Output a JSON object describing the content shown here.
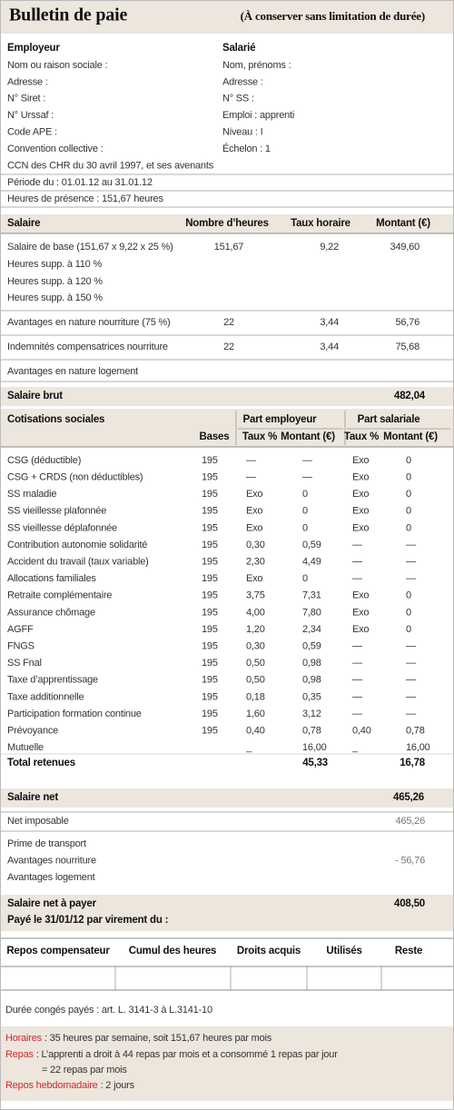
{
  "header": {
    "title": "Bulletin de paie",
    "note": "(À conserver sans limitation de durée)"
  },
  "employeur": {
    "heading": "Employeur",
    "lines": [
      "Nom ou raison sociale :",
      "Adresse :",
      "N° Siret :",
      "N° Urssaf :",
      "Code APE :",
      "Convention collective :",
      "CCN des CHR du 30 avril 1997, et ses avenants"
    ]
  },
  "salarie": {
    "heading": "Salarié",
    "lines": [
      "Nom, prénoms :",
      "Adresse :",
      "N° SS :",
      "Emploi : apprenti",
      "Niveau : I",
      "Échelon : 1"
    ]
  },
  "periode": "Période du : 01.01.12 au 31.01.12",
  "presence": "Heures de présence : 151,67 heures",
  "salaire": {
    "headers": [
      "Salaire",
      "Nombre d’heures",
      "Taux horaire",
      "Montant (€)"
    ],
    "rows": [
      [
        "Salaire de base (151,67 x 9,22 x 25 %)",
        "151,67",
        "9,22",
        "349,60"
      ],
      [
        "Heures supp. à 110 %"
      ],
      [
        "Heures supp. à 120 %"
      ],
      [
        "Heures supp. à 150 %"
      ],
      [
        "Avantages en nature nourriture (75 %)",
        "22",
        "3,44",
        "56,76"
      ],
      [
        "Indemnités compensatrices nourriture",
        "22",
        "3,44",
        "75,68"
      ],
      [
        "Avantages en nature logement"
      ]
    ]
  },
  "brut": {
    "label": "Salaire brut",
    "value": "482,04"
  },
  "cotisations": {
    "title": "Cotisations sociales",
    "groups": [
      "Part employeur",
      "Part salariale"
    ],
    "columns": [
      "Bases",
      "Taux %",
      "Montant (€)",
      "Taux %",
      "Montant (€)"
    ],
    "rows": [
      [
        "CSG (déductible)",
        "195",
        "—",
        "—",
        "Exo",
        "0"
      ],
      [
        "CSG + CRDS (non déductibles)",
        "195",
        "—",
        "—",
        "Exo",
        "0"
      ],
      [
        "SS maladie",
        "195",
        "Exo",
        "0",
        "Exo",
        "0"
      ],
      [
        "SS vieillesse plafonnée",
        "195",
        "Exo",
        "0",
        "Exo",
        "0"
      ],
      [
        "SS vieillesse déplafonnée",
        "195",
        "Exo",
        "0",
        "Exo",
        "0"
      ],
      [
        "Contribution autonomie solidarité",
        "195",
        "0,30",
        "0,59",
        "—",
        "—"
      ],
      [
        "Accident du travail (taux variable)",
        "195",
        "2,30",
        "4,49",
        "—",
        "—"
      ],
      [
        "Allocations familiales",
        "195",
        "Exo",
        "0",
        "—",
        "—"
      ],
      [
        "Retraite complémentaire",
        "195",
        "3,75",
        "7,31",
        "Exo",
        "0"
      ],
      [
        "Assurance chômage",
        "195",
        "4,00",
        "7,80",
        "Exo",
        "0"
      ],
      [
        "AGFF",
        "195",
        "1,20",
        "2,34",
        "Exo",
        "0"
      ],
      [
        "FNGS",
        "195",
        "0,30",
        "0,59",
        "—",
        "—"
      ],
      [
        "SS Fnal",
        "195",
        "0,50",
        "0,98",
        "—",
        "—"
      ],
      [
        "Taxe d’apprentissage",
        "195",
        "0,50",
        "0,98",
        "—",
        "—"
      ],
      [
        "Taxe additionnelle",
        "195",
        "0,18",
        "0,35",
        "—",
        "—"
      ],
      [
        "Participation formation continue",
        "195",
        "1,60",
        "3,12",
        "—",
        "—"
      ],
      [
        "Prévoyance",
        "195",
        "0,40",
        "0,78",
        "0,40",
        "0,78"
      ],
      [
        "Mutuelle",
        null,
        "_",
        "16,00",
        "_",
        "16,00"
      ]
    ],
    "total": {
      "label": "Total retenues",
      "employer": "45,33",
      "employee": "16,78"
    }
  },
  "net": {
    "label": "Salaire net",
    "value": "465,26"
  },
  "net_imposable": {
    "label": "Net imposable",
    "value": "465,26"
  },
  "ajustements": [
    [
      "Prime de transport"
    ],
    [
      "Avantages nourriture",
      "- 56,76"
    ],
    [
      "Avantages logement"
    ]
  ],
  "net_a_payer": {
    "label": "Salaire net à payer",
    "value": "408,50",
    "paid": "Payé le 31/01/12 par virement du :"
  },
  "repos": {
    "headers": [
      "Repos compensateur",
      "Cumul des heures",
      "Droits acquis",
      "Utilisés",
      "Reste"
    ]
  },
  "conges": "Durée congés payés : art. L. 3141-3  à  L.3141-10",
  "notes": [
    {
      "label": "Horaires",
      "text": ": 35 heures par semaine, soit 151,67 heures par mois"
    },
    {
      "label": "Repas",
      "text": ": L’apprenti a droit à 44 repas par mois et a consommé 1 repas par jour",
      "cont": "= 22 repas par mois"
    },
    {
      "label": "Repos hebdomadaire",
      "text": ": 2 jours"
    }
  ]
}
